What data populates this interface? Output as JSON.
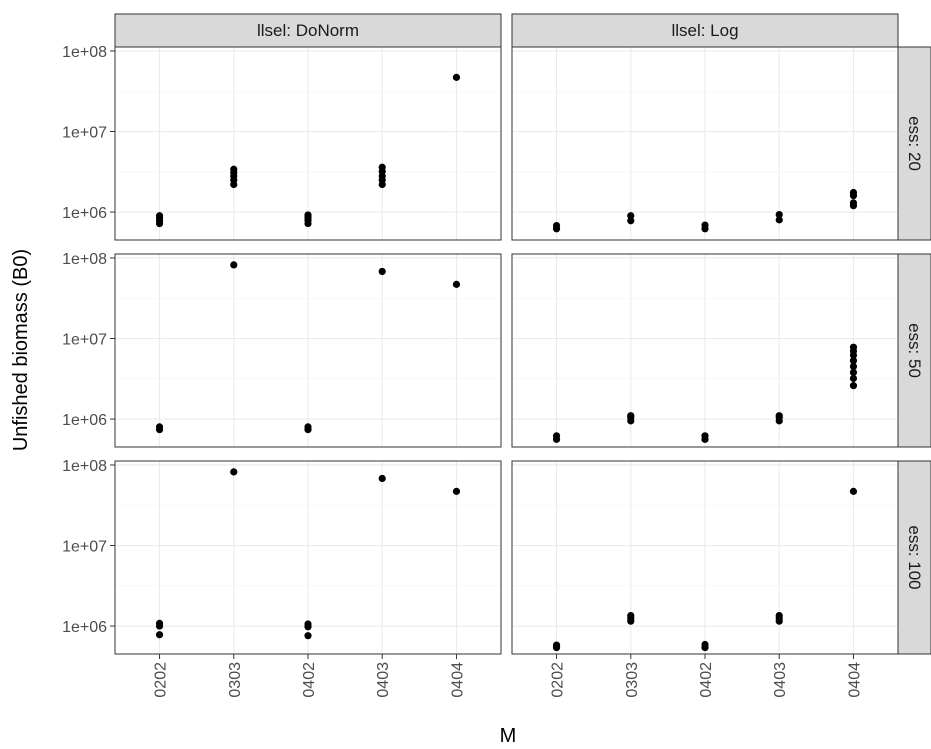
{
  "chart_data": {
    "type": "scatter",
    "x_label": "M",
    "y_label": "Unfished biomass (B0)",
    "log_y": true,
    "grid": true,
    "color": "#000000",
    "ylim": [
      450000,
      112000000
    ],
    "yticks": [
      {
        "value": 1000000,
        "label": "1e+06"
      },
      {
        "value": 10000000,
        "label": "1e+07"
      },
      {
        "value": 100000000,
        "label": "1e+08"
      }
    ],
    "categories": [
      "0202",
      "0303",
      "0402",
      "0403",
      "0404"
    ],
    "columns": [
      "llsel: DoNorm",
      "llsel: Log"
    ],
    "rows": [
      "ess: 20",
      "ess: 50",
      "ess: 100"
    ],
    "panels": [
      {
        "x": [
          "0202",
          "0202",
          "0202",
          "0202",
          "0303",
          "0303",
          "0303",
          "0303",
          "0303",
          "0402",
          "0402",
          "0402",
          "0402",
          "0403",
          "0403",
          "0403",
          "0403",
          "0403",
          "0404"
        ],
        "values": [
          720000,
          780000,
          850000,
          900000,
          2200000,
          2500000,
          2800000,
          3100000,
          3400000,
          720000,
          790000,
          860000,
          920000,
          2200000,
          2500000,
          2800000,
          3200000,
          3600000,
          47000000
        ]
      },
      {
        "x": [
          "0202",
          "0202",
          "0303",
          "0303",
          "0402",
          "0402",
          "0403",
          "0403",
          "0404",
          "0404",
          "0404",
          "0404"
        ],
        "values": [
          620000,
          680000,
          780000,
          900000,
          620000,
          690000,
          800000,
          930000,
          1200000,
          1300000,
          1600000,
          1750000
        ]
      },
      {
        "x": [
          "0202",
          "0202",
          "0303",
          "0402",
          "0402",
          "0403",
          "0404"
        ],
        "values": [
          740000,
          800000,
          82000000,
          740000,
          800000,
          68000000,
          47000000
        ]
      },
      {
        "x": [
          "0202",
          "0202",
          "0303",
          "0303",
          "0303",
          "0402",
          "0402",
          "0403",
          "0403",
          "0403",
          "0404",
          "0404",
          "0404",
          "0404",
          "0404",
          "0404",
          "0404",
          "0404"
        ],
        "values": [
          560000,
          620000,
          950000,
          1050000,
          1100000,
          560000,
          620000,
          950000,
          1050000,
          1100000,
          2600000,
          3200000,
          3800000,
          4500000,
          5300000,
          6200000,
          7000000,
          7800000
        ]
      },
      {
        "x": [
          "0202",
          "0202",
          "0202",
          "0303",
          "0402",
          "0402",
          "0402",
          "0403",
          "0404"
        ],
        "values": [
          780000,
          1000000,
          1080000,
          82000000,
          760000,
          980000,
          1060000,
          68000000,
          47000000
        ]
      },
      {
        "x": [
          "0202",
          "0202",
          "0303",
          "0303",
          "0303",
          "0402",
          "0402",
          "0403",
          "0403",
          "0403",
          "0404"
        ],
        "values": [
          540000,
          580000,
          1150000,
          1250000,
          1350000,
          540000,
          590000,
          1150000,
          1250000,
          1350000,
          47000000
        ]
      }
    ]
  }
}
